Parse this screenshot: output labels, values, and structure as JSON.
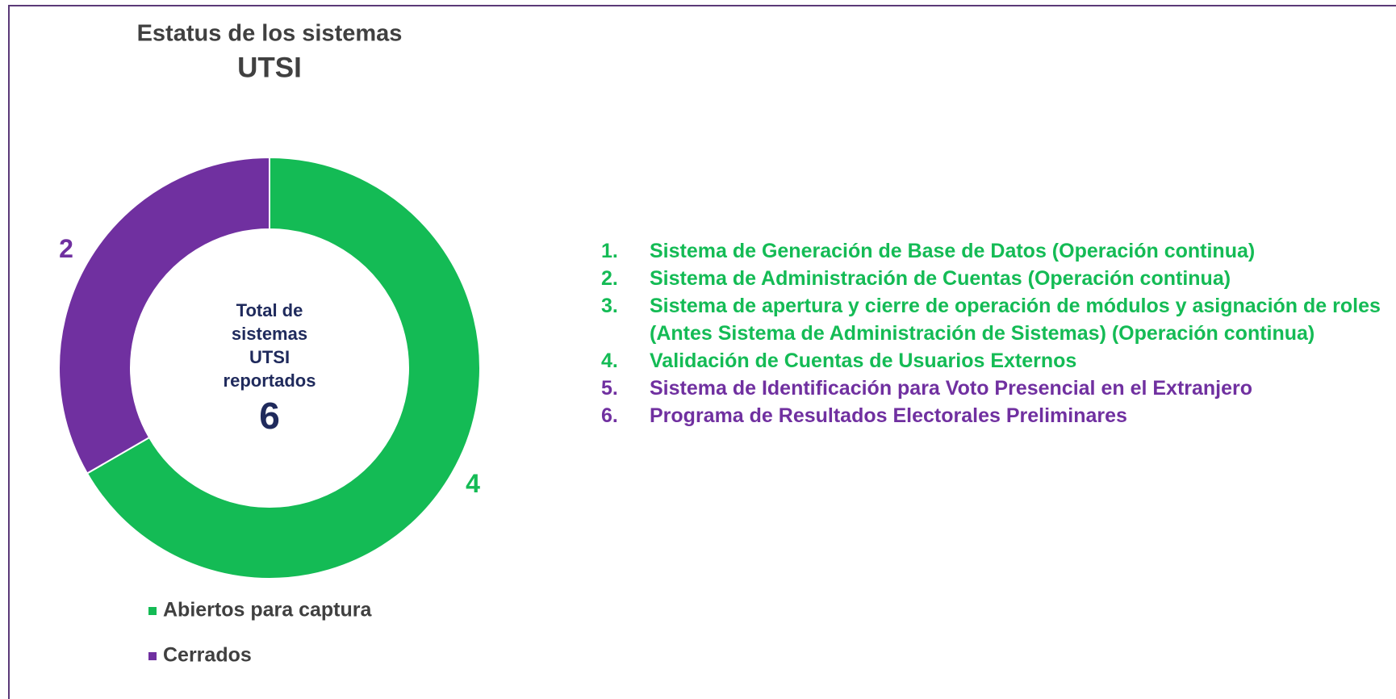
{
  "chart_data": {
    "type": "donut",
    "title": "Estatus de los sistemas",
    "subtitle": "UTSI",
    "center_label": "Total de sistemas UTSI reportados",
    "center_value": 6,
    "categories": [
      "Abiertos para captura",
      "Cerrados"
    ],
    "values": [
      4,
      2
    ],
    "colors": [
      "#14bb55",
      "#7030a0"
    ],
    "legend": "bottom"
  },
  "list": [
    {
      "number": "1.",
      "text": "Sistema de Generación de Base de Datos (Operación continua)",
      "color": "#14bb55"
    },
    {
      "number": "2.",
      "text": "Sistema de Administración de Cuentas (Operación continua)",
      "color": "#14bb55"
    },
    {
      "number": "3.",
      "text": "Sistema de apertura y cierre de operación de módulos y asignación de roles (Antes Sistema de Administración de Sistemas) (Operación continua)",
      "color": "#14bb55"
    },
    {
      "number": "4.",
      "text": "Validación de Cuentas de Usuarios Externos",
      "color": "#14bb55"
    },
    {
      "number": "5.",
      "text": "Sistema de Identificación para Voto Presencial en el Extranjero",
      "color": "#7030a0"
    },
    {
      "number": "6.",
      "text": "Programa de Resultados Electorales Preliminares",
      "color": "#7030a0"
    }
  ]
}
